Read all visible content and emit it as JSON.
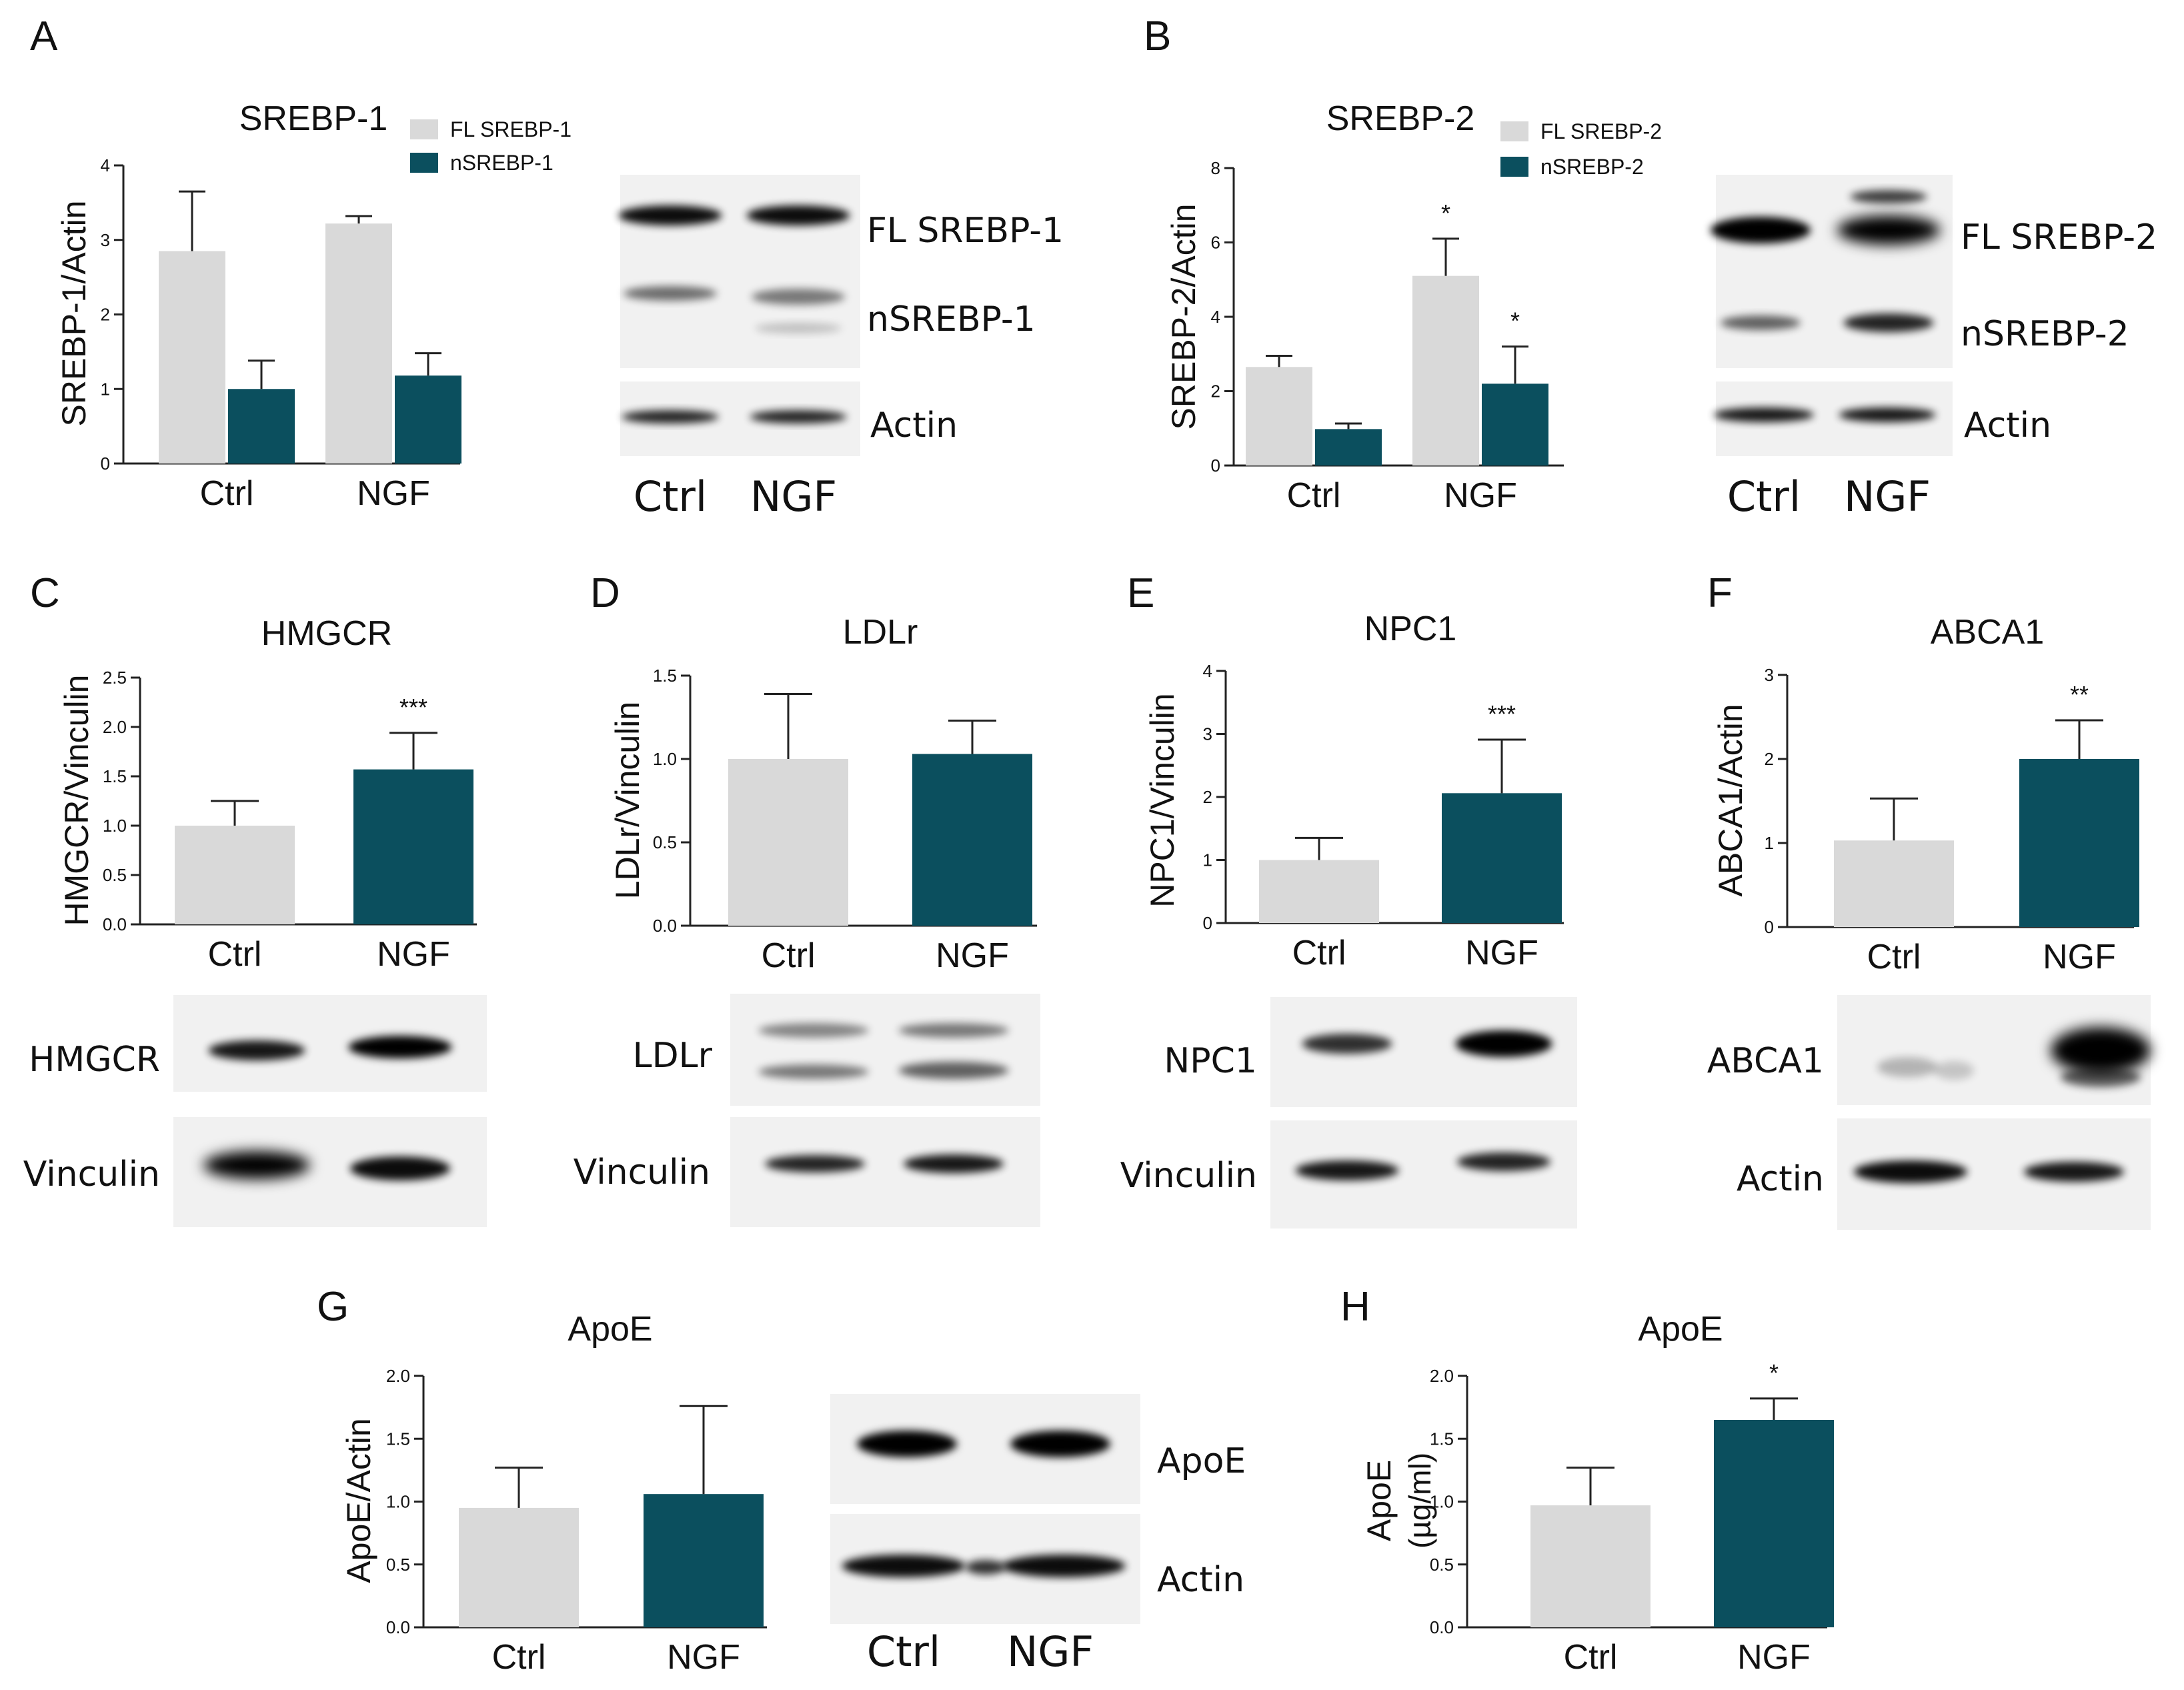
{
  "colors": {
    "ctrl_fill": "#d9d9d9",
    "ngf_fill": "#0b4f5e",
    "axis": "#222222",
    "text": "#111111"
  },
  "chart_data": [
    {
      "id": "A",
      "panel_letter": "A",
      "type": "bar",
      "title": "SREBP-1",
      "xlabel": "",
      "ylabel": "SREBP-1/Actin",
      "ylim": [
        0,
        4
      ],
      "yticks": [
        "0",
        "1",
        "2",
        "3",
        "4"
      ],
      "ytick_values": [
        0,
        1,
        2,
        3,
        4
      ],
      "categories": [
        "Ctrl",
        "NGF"
      ],
      "series": [
        {
          "name": "FL SREBP-1",
          "values": [
            2.85,
            3.22
          ],
          "errors": [
            0.8,
            0.1
          ],
          "color": "#d9d9d9",
          "sig": [
            "",
            ""
          ]
        },
        {
          "name": "nSREBP-1",
          "values": [
            1.0,
            1.18
          ],
          "errors": [
            0.38,
            0.3
          ],
          "color": "#0b4f5e",
          "sig": [
            "",
            ""
          ]
        }
      ],
      "legend": "top-right"
    },
    {
      "id": "B",
      "panel_letter": "B",
      "type": "bar",
      "title": "SREBP-2",
      "xlabel": "",
      "ylabel": "SREBP-2/Actin",
      "ylim": [
        0,
        8
      ],
      "yticks": [
        "0",
        "2",
        "4",
        "6",
        "8"
      ],
      "ytick_values": [
        0,
        2,
        4,
        6,
        8
      ],
      "categories": [
        "Ctrl",
        "NGF"
      ],
      "series": [
        {
          "name": "FL SREBP-2",
          "values": [
            2.65,
            5.1
          ],
          "errors": [
            0.3,
            1.0
          ],
          "color": "#d9d9d9",
          "sig": [
            "",
            "*"
          ]
        },
        {
          "name": "nSREBP-2",
          "values": [
            0.98,
            2.2
          ],
          "errors": [
            0.15,
            1.0
          ],
          "color": "#0b4f5e",
          "sig": [
            "",
            "*"
          ]
        }
      ],
      "legend": "top-right"
    },
    {
      "id": "C",
      "panel_letter": "C",
      "type": "bar",
      "title": "HMGCR",
      "xlabel": "",
      "ylabel": "HMGCR/Vinculin",
      "ylim": [
        0,
        2.5
      ],
      "yticks": [
        "0.0",
        "0.5",
        "1.0",
        "1.5",
        "2.0",
        "2.5"
      ],
      "ytick_values": [
        0,
        0.5,
        1.0,
        1.5,
        2.0,
        2.5
      ],
      "categories": [
        "Ctrl",
        "NGF"
      ],
      "values": [
        1.0,
        1.57
      ],
      "errors": [
        0.25,
        0.37
      ],
      "colors": [
        "#d9d9d9",
        "#0b4f5e"
      ],
      "sig": [
        "",
        "***"
      ]
    },
    {
      "id": "D",
      "panel_letter": "D",
      "type": "bar",
      "title": "LDLr",
      "xlabel": "",
      "ylabel": "LDLr/Vinculin",
      "ylim": [
        0,
        1.5
      ],
      "yticks": [
        "0.0",
        "0.5",
        "1.0",
        "1.5"
      ],
      "ytick_values": [
        0,
        0.5,
        1.0,
        1.5
      ],
      "categories": [
        "Ctrl",
        "NGF"
      ],
      "values": [
        1.0,
        1.03
      ],
      "errors": [
        0.39,
        0.2
      ],
      "colors": [
        "#d9d9d9",
        "#0b4f5e"
      ],
      "sig": [
        "",
        ""
      ]
    },
    {
      "id": "E",
      "panel_letter": "E",
      "type": "bar",
      "title": "NPC1",
      "xlabel": "",
      "ylabel": "NPC1/Vinculin",
      "ylim": [
        0,
        4
      ],
      "yticks": [
        "0",
        "1",
        "2",
        "3",
        "4"
      ],
      "ytick_values": [
        0,
        1,
        2,
        3,
        4
      ],
      "categories": [
        "Ctrl",
        "NGF"
      ],
      "values": [
        1.0,
        2.06
      ],
      "errors": [
        0.35,
        0.85
      ],
      "colors": [
        "#d9d9d9",
        "#0b4f5e"
      ],
      "sig": [
        "",
        "***"
      ]
    },
    {
      "id": "F",
      "panel_letter": "F",
      "type": "bar",
      "title": "ABCA1",
      "xlabel": "",
      "ylabel": "ABCA1/Actin",
      "ylim": [
        0,
        3
      ],
      "yticks": [
        "0",
        "1",
        "2",
        "3"
      ],
      "ytick_values": [
        0,
        1,
        2,
        3
      ],
      "categories": [
        "Ctrl",
        "NGF"
      ],
      "values": [
        1.03,
        2.0
      ],
      "errors": [
        0.5,
        0.46
      ],
      "colors": [
        "#d9d9d9",
        "#0b4f5e"
      ],
      "sig": [
        "",
        "**"
      ]
    },
    {
      "id": "G",
      "panel_letter": "G",
      "type": "bar",
      "title": "ApoE",
      "xlabel": "",
      "ylabel": "ApoE/Actin",
      "ylim": [
        0,
        2.0
      ],
      "yticks": [
        "0.0",
        "0.5",
        "1.0",
        "1.5",
        "2.0"
      ],
      "ytick_values": [
        0,
        0.5,
        1.0,
        1.5,
        2.0
      ],
      "categories": [
        "Ctrl",
        "NGF"
      ],
      "values": [
        0.95,
        1.06
      ],
      "errors": [
        0.32,
        0.7
      ],
      "colors": [
        "#d9d9d9",
        "#0b4f5e"
      ],
      "sig": [
        "",
        ""
      ]
    },
    {
      "id": "H",
      "panel_letter": "H",
      "type": "bar",
      "title": "ApoE",
      "xlabel": "",
      "ylabel": "ApoE",
      "ylabel2": "(µg/ml)",
      "ylim": [
        0,
        2.0
      ],
      "yticks": [
        "0.0",
        "0.5",
        "1.0",
        "1.5",
        "2.0"
      ],
      "ytick_values": [
        0,
        0.5,
        1.0,
        1.5,
        2.0
      ],
      "categories": [
        "Ctrl",
        "NGF"
      ],
      "values": [
        0.97,
        1.65
      ],
      "errors": [
        0.3,
        0.17
      ],
      "colors": [
        "#d9d9d9",
        "#0b4f5e"
      ],
      "sig": [
        "",
        "*"
      ]
    }
  ],
  "blots": [
    {
      "id": "A-blot",
      "rows": [
        "FL SREBP-1",
        "nSREBP-1",
        "Actin"
      ],
      "lanes": [
        "Ctrl",
        "NGF"
      ]
    },
    {
      "id": "B-blot",
      "rows": [
        "FL SREBP-2",
        "nSREBP-2",
        "Actin"
      ],
      "lanes": [
        "Ctrl",
        "NGF"
      ]
    },
    {
      "id": "C-blot",
      "rows": [
        "HMGCR",
        "Vinculin"
      ]
    },
    {
      "id": "D-blot",
      "rows": [
        "LDLr",
        "Vinculin"
      ]
    },
    {
      "id": "E-blot",
      "rows": [
        "NPC1",
        "Vinculin"
      ]
    },
    {
      "id": "F-blot",
      "rows": [
        "ABCA1",
        "Actin"
      ]
    },
    {
      "id": "G-blot",
      "rows": [
        "ApoE",
        "Actin"
      ],
      "lanes": [
        "Ctrl",
        "NGF"
      ]
    }
  ]
}
